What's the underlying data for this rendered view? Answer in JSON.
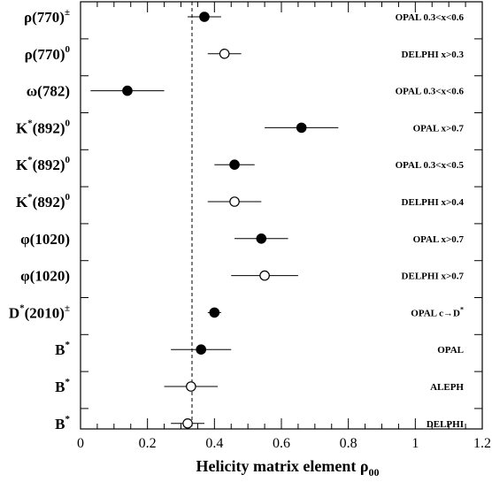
{
  "chart_data": {
    "type": "scatter",
    "title": "",
    "xlabel": "Helicity matrix element ρ",
    "xlabel_sub": "00",
    "xlim": [
      0,
      1.2
    ],
    "xticks": [
      "0",
      "0.2",
      "0.4",
      "0.6",
      "0.8",
      "1",
      "1.2"
    ],
    "xtick_values": [
      0,
      0.2,
      0.4,
      0.6,
      0.8,
      1.0,
      1.2
    ],
    "reference_line": {
      "x": 0.333,
      "style": "dashed"
    },
    "legend": "none",
    "grid": false,
    "marker_fill": {
      "OPAL": "#000000",
      "DELPHI": "#ffffff",
      "ALEPH": "#ffffff"
    },
    "points": [
      {
        "particle": "ρ(770)",
        "sup": "±",
        "experiment": "OPAL 0.3<x<0.6",
        "value": 0.37,
        "err_low": 0.05,
        "err_high": 0.05,
        "filled": true
      },
      {
        "particle": "ρ(770)",
        "sup": "0",
        "experiment": "DELPHI x>0.3",
        "value": 0.43,
        "err_low": 0.05,
        "err_high": 0.05,
        "filled": false
      },
      {
        "particle": "ω(782)",
        "sup": "",
        "experiment": "OPAL 0.3<x<0.6",
        "value": 0.14,
        "err_low": 0.11,
        "err_high": 0.11,
        "filled": true
      },
      {
        "particle": "K",
        "sup": "*",
        "suffix": "(892)",
        "suffix_sup": "0",
        "experiment": "OPAL x>0.7",
        "value": 0.66,
        "err_low": 0.11,
        "err_high": 0.11,
        "filled": true
      },
      {
        "particle": "K",
        "sup": "*",
        "suffix": "(892)",
        "suffix_sup": "0",
        "experiment": "OPAL 0.3<x<0.5",
        "value": 0.46,
        "err_low": 0.06,
        "err_high": 0.06,
        "filled": true
      },
      {
        "particle": "K",
        "sup": "*",
        "suffix": "(892)",
        "suffix_sup": "0",
        "experiment": "DELPHI x>0.4",
        "value": 0.46,
        "err_low": 0.08,
        "err_high": 0.08,
        "filled": false
      },
      {
        "particle": "φ(1020)",
        "sup": "",
        "experiment": "OPAL x>0.7",
        "value": 0.54,
        "err_low": 0.08,
        "err_high": 0.08,
        "filled": true
      },
      {
        "particle": "φ(1020)",
        "sup": "",
        "experiment": "DELPHI x>0.7",
        "value": 0.55,
        "err_low": 0.1,
        "err_high": 0.1,
        "filled": false
      },
      {
        "particle": "D",
        "sup": "*",
        "suffix": "(2010)",
        "suffix_sup": "±",
        "experiment": "OPAL c→D*",
        "value": 0.4,
        "err_low": 0.02,
        "err_high": 0.02,
        "filled": true
      },
      {
        "particle": "B",
        "sup": "*",
        "experiment": "OPAL",
        "value": 0.36,
        "err_low": 0.09,
        "err_high": 0.09,
        "filled": true
      },
      {
        "particle": "B",
        "sup": "*",
        "experiment": "ALEPH",
        "value": 0.33,
        "err_low": 0.08,
        "err_high": 0.08,
        "filled": false
      },
      {
        "particle": "B",
        "sup": "*",
        "experiment": "DELPHI",
        "value": 0.32,
        "err_low": 0.05,
        "err_high": 0.05,
        "filled": false
      }
    ]
  }
}
